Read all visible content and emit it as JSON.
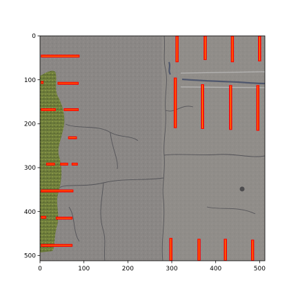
{
  "axes": {
    "x_range": [
      0,
      512
    ],
    "y_range": [
      0,
      512
    ],
    "x_ticks": [
      {
        "value": 0,
        "label": "0"
      },
      {
        "value": 100,
        "label": "100"
      },
      {
        "value": 200,
        "label": "200"
      },
      {
        "value": 300,
        "label": "300"
      },
      {
        "value": 400,
        "label": "400"
      },
      {
        "value": 500,
        "label": "500"
      }
    ],
    "y_ticks": [
      {
        "value": 0,
        "label": "0"
      },
      {
        "value": 100,
        "label": "100"
      },
      {
        "value": 200,
        "label": "200"
      },
      {
        "value": 300,
        "label": "300"
      },
      {
        "value": 400,
        "label": "400"
      },
      {
        "value": 500,
        "label": "500"
      }
    ]
  },
  "colors": {
    "pavement": "#8a8785",
    "vegetation": "#6b7a3a",
    "marking": "#ff0000",
    "marking_core": "#ffd400",
    "crack": "#4a4a50",
    "tar": "#3f4a66"
  },
  "markings": {
    "horizontal": [
      {
        "x0": 2,
        "x1": 90,
        "y": 46
      },
      {
        "x0": 2,
        "x1": 8,
        "y": 106
      },
      {
        "x0": 40,
        "x1": 88,
        "y": 108
      },
      {
        "x0": 2,
        "x1": 36,
        "y": 168
      },
      {
        "x0": 54,
        "x1": 88,
        "y": 168
      },
      {
        "x0": 64,
        "x1": 84,
        "y": 232
      },
      {
        "x0": 14,
        "x1": 34,
        "y": 292
      },
      {
        "x0": 46,
        "x1": 64,
        "y": 292
      },
      {
        "x0": 72,
        "x1": 86,
        "y": 292
      },
      {
        "x0": 2,
        "x1": 76,
        "y": 353
      },
      {
        "x0": 2,
        "x1": 14,
        "y": 413
      },
      {
        "x0": 36,
        "x1": 74,
        "y": 415
      },
      {
        "x0": 2,
        "x1": 74,
        "y": 477
      }
    ],
    "vertical": [
      {
        "x": 312,
        "y0": 0,
        "y1": 60
      },
      {
        "x": 376,
        "y0": 0,
        "y1": 55
      },
      {
        "x": 438,
        "y0": 0,
        "y1": 60
      },
      {
        "x": 500,
        "y0": 0,
        "y1": 58
      },
      {
        "x": 308,
        "y0": 95,
        "y1": 210
      },
      {
        "x": 370,
        "y0": 110,
        "y1": 212
      },
      {
        "x": 434,
        "y0": 112,
        "y1": 214
      },
      {
        "x": 496,
        "y0": 112,
        "y1": 216
      },
      {
        "x": 298,
        "y0": 460,
        "y1": 512
      },
      {
        "x": 362,
        "y0": 462,
        "y1": 512
      },
      {
        "x": 422,
        "y0": 462,
        "y1": 512
      },
      {
        "x": 484,
        "y0": 464,
        "y1": 512
      }
    ]
  }
}
